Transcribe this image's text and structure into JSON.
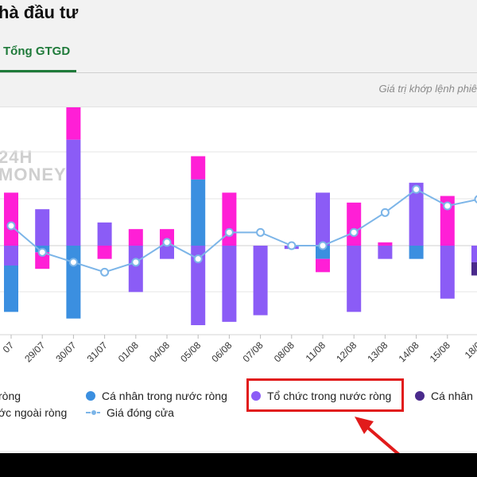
{
  "header": {
    "title": "hà đầu tư"
  },
  "tabs": [
    {
      "label": "Tổng GTGD"
    }
  ],
  "note": "Giá trị khớp lệnh phiê",
  "watermark": {
    "line1": "24H",
    "line2": "MONEY"
  },
  "colors": {
    "ca_nhan_trong_nuoc": "#3b8fe0",
    "to_chuc_trong_nuoc": "#8b5cf6",
    "ca_nhan_nuoc_ngoai": "#4a2a8c",
    "to_chuc_nuoc_ngoai": "#ff1fd6",
    "gia_dong_cua": "#7cb5e8",
    "highlight": "#e11b1b"
  },
  "legend": {
    "row1": [
      {
        "label": "ròng",
        "color": "#ff1fd6"
      },
      {
        "label": "Cá nhân trong nước ròng",
        "color": "#3b8fe0"
      },
      {
        "label": "Tổ chức trong nước ròng",
        "color": "#8b5cf6"
      },
      {
        "label": "Cá nhân",
        "color": "#4a2a8c"
      }
    ],
    "row2": [
      {
        "label": "ớc ngoài ròng"
      },
      {
        "label": "Giá đóng cửa"
      }
    ]
  },
  "chart_data": {
    "type": "bar",
    "categories": [
      "07",
      "29/07",
      "30/07",
      "31/07",
      "01/08",
      "04/08",
      "05/08",
      "06/08",
      "07/08",
      "08/08",
      "11/08",
      "12/08",
      "13/08",
      "14/08",
      "15/08",
      "18/0"
    ],
    "series": [
      {
        "name": "Tổ chức trong nước ròng",
        "values": [
          -0.6,
          1.1,
          3.2,
          0.7,
          -1.4,
          -0.4,
          -2.4,
          -2.3,
          -2.1,
          -0.1,
          1.6,
          -2.0,
          -0.4,
          1.9,
          -1.6,
          -0.5
        ]
      },
      {
        "name": "Cá nhân trong nước ròng",
        "values": [
          -1.4,
          -0.2,
          -2.2,
          0.0,
          0.0,
          0.0,
          2.0,
          0.0,
          0.0,
          0.0,
          -0.4,
          0.0,
          0.0,
          -0.4,
          0.0,
          0.0
        ]
      },
      {
        "name": "Cá nhân nước ngoài ròng",
        "values": [
          0,
          0,
          0,
          0,
          0,
          0,
          0,
          0,
          0,
          0,
          0,
          0,
          0,
          0,
          0,
          -0.4
        ]
      },
      {
        "name": "Tổ chức nước ngoài ròng",
        "values": [
          1.6,
          -0.5,
          1.0,
          -0.4,
          0.5,
          0.5,
          0.7,
          1.6,
          0.0,
          0.0,
          -0.4,
          1.3,
          0.1,
          0.0,
          1.5,
          0.0
        ]
      },
      {
        "name": "Giá đóng cửa",
        "values": [
          0.6,
          -0.2,
          -0.5,
          -0.8,
          -0.5,
          0.1,
          -0.4,
          0.4,
          0.4,
          0.0,
          0.0,
          0.4,
          1.0,
          1.7,
          1.2,
          1.4
        ]
      }
    ],
    "ylim": [
      -3,
      3
    ]
  }
}
